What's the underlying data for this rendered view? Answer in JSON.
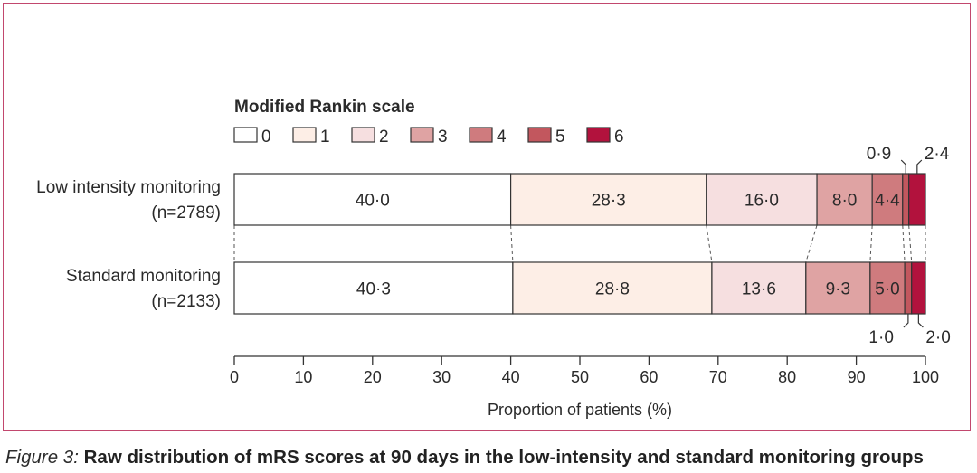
{
  "caption": {
    "label": "Figure 3:",
    "text": "Raw distribution of mRS scores at 90 days in the low-intensity and standard monitoring groups"
  },
  "colors": {
    "frame": "#c2476e",
    "outline": "#333333",
    "categories": [
      "#ffffff",
      "#fdeee6",
      "#f6dfe0",
      "#dfa3a3",
      "#cf7b7e",
      "#c2575e",
      "#b2123d"
    ]
  },
  "chart_data": {
    "type": "bar",
    "orientation": "horizontal",
    "stacked": true,
    "legend": {
      "title": "Modified Rankin scale",
      "entries": [
        "0",
        "1",
        "2",
        "3",
        "4",
        "5",
        "6"
      ],
      "position": "top-left"
    },
    "xlabel": "Proportion of patients (%)",
    "ylabel": "",
    "xlim": [
      0,
      100
    ],
    "xticks": [
      0,
      10,
      20,
      30,
      40,
      50,
      60,
      70,
      80,
      90,
      100
    ],
    "grid": false,
    "groups": [
      {
        "label": [
          "Low intensity monitoring",
          "(n=2789)"
        ],
        "values": [
          40.0,
          28.3,
          16.0,
          8.0,
          4.4,
          0.9,
          2.4
        ],
        "inner_labels": [
          "40·0",
          "28·3",
          "16·0",
          "8·0",
          "4·4",
          "",
          ""
        ],
        "outer_labels": {
          "5": "0·9",
          "6": "2·4"
        },
        "outer_position": "above"
      },
      {
        "label": [
          "Standard monitoring",
          "(n=2133)"
        ],
        "values": [
          40.3,
          28.8,
          13.6,
          9.3,
          5.0,
          1.0,
          2.0
        ],
        "inner_labels": [
          "40·3",
          "28·8",
          "13·6",
          "9·3",
          "5·0",
          "",
          ""
        ],
        "outer_labels": {
          "5": "1·0",
          "6": "2·0"
        },
        "outer_position": "below"
      }
    ]
  }
}
